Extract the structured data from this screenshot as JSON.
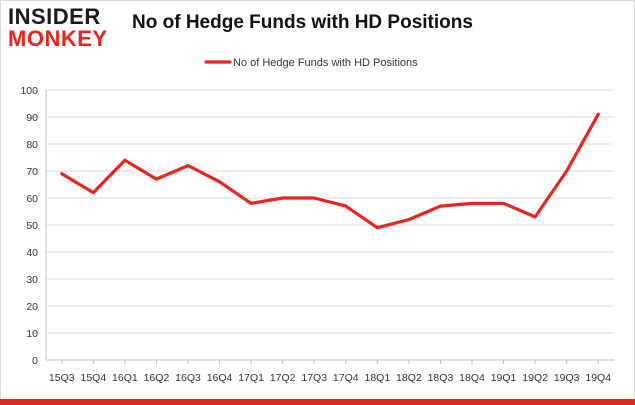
{
  "logo": {
    "line1": "INSIDER",
    "line2": "MONKEY"
  },
  "chart_data": {
    "type": "line",
    "title": "No of Hedge Funds with HD Positions",
    "categories": [
      "15Q3",
      "15Q4",
      "16Q1",
      "16Q2",
      "16Q3",
      "16Q4",
      "17Q1",
      "17Q2",
      "17Q3",
      "17Q4",
      "18Q1",
      "18Q2",
      "18Q3",
      "18Q4",
      "19Q1",
      "19Q2",
      "19Q3",
      "19Q4"
    ],
    "series": [
      {
        "name": "No of Hedge Funds with HD Positions",
        "values": [
          69,
          62,
          74,
          67,
          72,
          66,
          58,
          60,
          60,
          57,
          49,
          52,
          57,
          58,
          58,
          53,
          70,
          91
        ],
        "color": "#e8251e"
      }
    ],
    "ylim": [
      0,
      100
    ],
    "yticks": [
      0,
      10,
      20,
      30,
      40,
      50,
      60,
      70,
      80,
      90,
      100
    ],
    "grid": "horizontal",
    "legend": "top-center"
  }
}
